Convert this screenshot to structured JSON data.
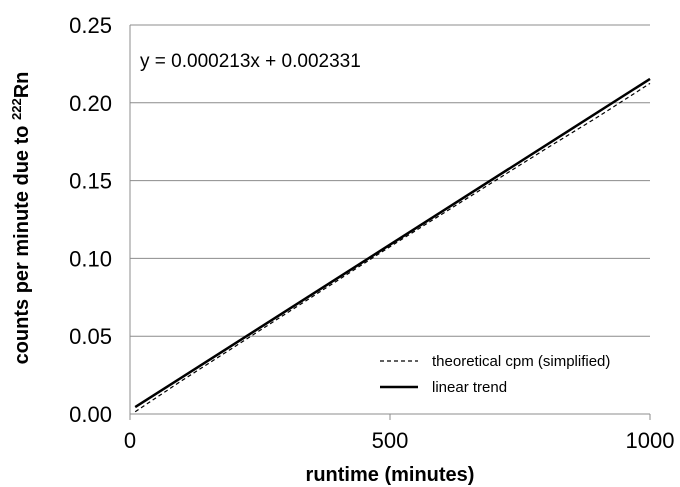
{
  "chart_data": {
    "type": "line",
    "title": "",
    "xlabel": "runtime (minutes)",
    "ylabel_prefix": "counts per minute due to ",
    "ylabel_sup": "222",
    "ylabel_suffix": "Rn",
    "xlim": [
      0,
      1000
    ],
    "ylim": [
      0,
      0.25
    ],
    "x_ticks": [
      0,
      500,
      1000
    ],
    "x_tick_labels": [
      "0",
      "500",
      "1000"
    ],
    "y_ticks": [
      0,
      0.05,
      0.1,
      0.15,
      0.2,
      0.25
    ],
    "y_tick_labels": [
      "0.00",
      "0.05",
      "0.10",
      "0.15",
      "0.20",
      "0.25"
    ],
    "grid": "horizontal",
    "legend_position": "bottom-right",
    "annotation": "y = 0.000213x + 0.002331",
    "series": [
      {
        "name": "theoretical cpm (simplified)",
        "style": "dashed",
        "color": "#000000",
        "x": [
          10,
          100,
          200,
          300,
          400,
          500,
          600,
          700,
          800,
          900,
          1000
        ],
        "y": [
          0.0015,
          0.0215,
          0.043,
          0.0645,
          0.086,
          0.1075,
          0.1285,
          0.1495,
          0.1705,
          0.191,
          0.2125
        ]
      },
      {
        "name": "linear trend",
        "style": "solid",
        "color": "#000000",
        "x": [
          10,
          1000
        ],
        "y": [
          0.004461,
          0.215331
        ]
      }
    ]
  }
}
